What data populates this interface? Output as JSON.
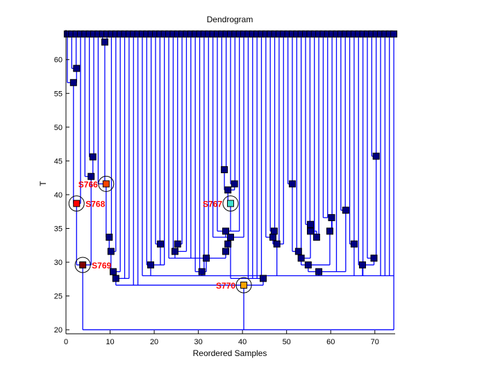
{
  "chart_data": {
    "type": "dendrogram",
    "title": "Dendrogram",
    "xlabel": "Reordered Samples",
    "ylabel": "T",
    "xlim": [
      0,
      74.6
    ],
    "ylim": [
      19.4,
      64.4
    ],
    "xticks": [
      0,
      10,
      20,
      30,
      40,
      50,
      60,
      70
    ],
    "yticks": [
      20,
      25,
      30,
      35,
      40,
      45,
      50,
      55,
      60
    ],
    "leaf_t": 63.8,
    "leaf_count": 75,
    "leaf_start": 0.3,
    "line_color": "#0000ff",
    "node_color": "#000080",
    "nodes": [
      {
        "x": 40,
        "t": 20,
        "p": -1,
        "marker": false
      },
      {
        "x": 3.8,
        "t": 29.6,
        "p": 0,
        "label": "S769",
        "color": "#800000"
      },
      {
        "x": 40.3,
        "t": 26.6,
        "p": 0,
        "label": "S770",
        "color": "#ffa500"
      },
      {
        "x": 2.4,
        "t": 38.7,
        "p": 1,
        "label": "S768",
        "color": "#ff0000"
      },
      {
        "x": 1.7,
        "t": 56.6,
        "p": 3
      },
      {
        "x": 2.4,
        "t": 58.7,
        "p": 4
      },
      {
        "x": 5.7,
        "t": 42.7,
        "p": 1
      },
      {
        "x": 6.1,
        "t": 45.6,
        "p": 6
      },
      {
        "x": 11.3,
        "t": 27.6,
        "p": 2
      },
      {
        "x": 10.7,
        "t": 28.6,
        "p": 8
      },
      {
        "x": 10.2,
        "t": 31.6,
        "p": 9
      },
      {
        "x": 9.8,
        "t": 33.7,
        "p": 10
      },
      {
        "x": 9.1,
        "t": 41.6,
        "p": 11,
        "label": "S766",
        "color": "#ff4500"
      },
      {
        "x": 8.8,
        "t": 62.6,
        "p": 12
      },
      {
        "x": 74.3,
        "t": 28,
        "p": 0,
        "marker": false
      },
      {
        "x": 44.7,
        "t": 27.6,
        "p": 2
      },
      {
        "x": 19.2,
        "t": 29.6,
        "p": 14
      },
      {
        "x": 21.4,
        "t": 32.7,
        "p": 16
      },
      {
        "x": 30.8,
        "t": 28.6,
        "p": 14
      },
      {
        "x": 31.8,
        "t": 30.6,
        "p": 18
      },
      {
        "x": 24.7,
        "t": 31.6,
        "p": 19
      },
      {
        "x": 25.3,
        "t": 32.7,
        "p": 20
      },
      {
        "x": 36.2,
        "t": 31.6,
        "p": 19
      },
      {
        "x": 36.7,
        "t": 32.7,
        "p": 22
      },
      {
        "x": 36.2,
        "t": 34.6,
        "p": 25
      },
      {
        "x": 37.3,
        "t": 33.7,
        "p": 15
      },
      {
        "x": 37.3,
        "t": 38.7,
        "p": 24,
        "label": "S767",
        "color": "#40e0d0"
      },
      {
        "x": 36.7,
        "t": 40.7,
        "p": 26
      },
      {
        "x": 35.9,
        "t": 43.7,
        "p": 27
      },
      {
        "x": 38.2,
        "t": 41.6,
        "p": 27
      },
      {
        "x": 47.8,
        "t": 32.7,
        "p": 14
      },
      {
        "x": 46.9,
        "t": 33.7,
        "p": 30
      },
      {
        "x": 47.2,
        "t": 34.6,
        "p": 31
      },
      {
        "x": 57.3,
        "t": 28.6,
        "p": 14
      },
      {
        "x": 54.9,
        "t": 29.6,
        "p": 33
      },
      {
        "x": 53.3,
        "t": 30.6,
        "p": 34
      },
      {
        "x": 52.7,
        "t": 31.6,
        "p": 35
      },
      {
        "x": 51.3,
        "t": 41.6,
        "p": 36
      },
      {
        "x": 55.4,
        "t": 34.6,
        "p": 35
      },
      {
        "x": 55.4,
        "t": 35.6,
        "p": 38
      },
      {
        "x": 56.8,
        "t": 33.7,
        "p": 38
      },
      {
        "x": 59.8,
        "t": 34.6,
        "p": 34
      },
      {
        "x": 60.2,
        "t": 36.6,
        "p": 41
      },
      {
        "x": 63.4,
        "t": 37.7,
        "p": 33
      },
      {
        "x": 65.3,
        "t": 32.7,
        "p": 14
      },
      {
        "x": 67.2,
        "t": 29.6,
        "p": 14
      },
      {
        "x": 69.8,
        "t": 30.6,
        "p": 45
      },
      {
        "x": 70.3,
        "t": 45.7,
        "p": 46
      }
    ],
    "leaf_parents": [
      4,
      5,
      5,
      3,
      6,
      7,
      7,
      12,
      13,
      13,
      11,
      10,
      9,
      8,
      8,
      2,
      2,
      14,
      16,
      16,
      17,
      17,
      16,
      19,
      20,
      21,
      21,
      20,
      19,
      18,
      18,
      18,
      19,
      25,
      24,
      28,
      28,
      29,
      29,
      24,
      25,
      15,
      15,
      15,
      15,
      31,
      32,
      32,
      30,
      30,
      37,
      37,
      36,
      35,
      39,
      39,
      40,
      40,
      42,
      42,
      41,
      33,
      43,
      43,
      44,
      44,
      45,
      14,
      46,
      47,
      47,
      14,
      14,
      14,
      14
    ]
  }
}
